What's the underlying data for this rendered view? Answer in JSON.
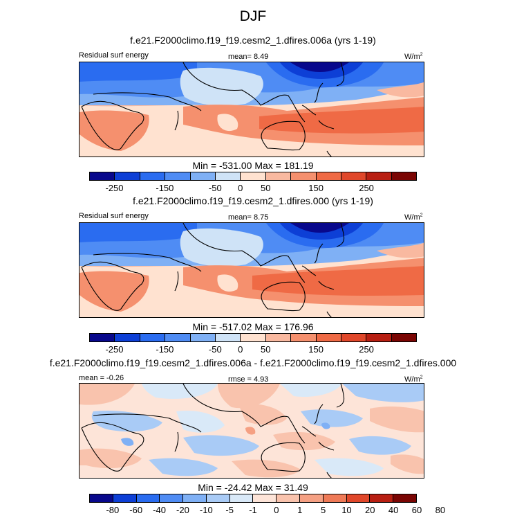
{
  "title": "DJF",
  "palettes": {
    "abs": [
      "#08088c",
      "#0d3fd6",
      "#2a6cf0",
      "#4f8cf4",
      "#7fb0f5",
      "#cfe3f7",
      "#ffe2d0",
      "#f9b9a0",
      "#f5906e",
      "#ef6a45",
      "#e0472a",
      "#b81f12",
      "#7a0503"
    ],
    "diff": [
      "#08088c",
      "#0d3fd6",
      "#2a6cf0",
      "#4f8cf4",
      "#7fb0f5",
      "#a9cbf6",
      "#d9e9f8",
      "#fde4d8",
      "#f9c3ad",
      "#f5a083",
      "#ef7a57",
      "#e0472a",
      "#b81f12",
      "#7a0503"
    ]
  },
  "panels": [
    {
      "title": "f.e21.F2000climo.f19_f19.cesm2_1.dfires.006a (yrs 1-19)",
      "left_label": "Residual surf energy",
      "center_label": "mean=  8.49",
      "units": "W/m",
      "units_exp": "2",
      "minmax": "Min = -531.00 Max = 181.19",
      "palette": "abs",
      "ticks": [
        "-250",
        "-150",
        "-50",
        "0",
        "50",
        "150",
        "250"
      ]
    },
    {
      "title": "f.e21.F2000climo.f19_f19.cesm2_1.dfires.000 (yrs 1-19)",
      "left_label": "Residual surf energy",
      "center_label": "mean=  8.75",
      "units": "W/m",
      "units_exp": "2",
      "minmax": "Min = -517.02 Max = 176.96",
      "palette": "abs",
      "ticks": [
        "-250",
        "-150",
        "-50",
        "0",
        "50",
        "150",
        "250"
      ]
    },
    {
      "title": "f.e21.F2000climo.f19_f19.cesm2_1.dfires.006a - f.e21.F2000climo.f19_f19.cesm2_1.dfires.000",
      "left_label": "mean = -0.26",
      "center_label": "rmse =  4.93",
      "units": "W/m",
      "units_exp": "2",
      "minmax": "Min = -24.42 Max = 31.49",
      "palette": "diff",
      "ticks": [
        "-80",
        "-60",
        "-40",
        "-20",
        "-10",
        "-5",
        "-1",
        "0",
        "1",
        "5",
        "10",
        "20",
        "40",
        "60",
        "80"
      ]
    }
  ],
  "chart_data": [
    {
      "type": "heatmap",
      "title": "f.e21.F2000climo.f19_f19.cesm2_1.dfires.006a (yrs 1-19)",
      "variable": "Residual surf energy",
      "mean": 8.49,
      "min": -531.0,
      "max": 181.19,
      "contour_levels": [
        -300,
        -250,
        -200,
        -150,
        -100,
        -50,
        0,
        25,
        50,
        100,
        150,
        200,
        250
      ],
      "colorbar_ticks": [
        -250,
        -150,
        -50,
        0,
        50,
        150,
        250
      ]
    },
    {
      "type": "heatmap",
      "title": "f.e21.F2000climo.f19_f19.cesm2_1.dfires.000 (yrs 1-19)",
      "variable": "Residual surf energy",
      "mean": 8.75,
      "min": -517.02,
      "max": 176.96,
      "contour_levels": [
        -300,
        -250,
        -200,
        -150,
        -100,
        -50,
        0,
        25,
        50,
        100,
        150,
        200,
        250
      ],
      "colorbar_ticks": [
        -250,
        -150,
        -50,
        0,
        50,
        150,
        250
      ]
    },
    {
      "type": "heatmap",
      "title": "f.e21.F2000climo.f19_f19.cesm2_1.dfires.006a - f.e21.F2000climo.f19_f19.cesm2_1.dfires.000",
      "mean": -0.26,
      "rmse": 4.93,
      "min": -24.42,
      "max": 31.49,
      "contour_levels": [
        -80,
        -60,
        -40,
        -20,
        -10,
        -5,
        -1,
        0,
        1,
        5,
        10,
        20,
        40,
        60,
        80
      ],
      "colorbar_ticks": [
        -80,
        -60,
        -40,
        -20,
        -10,
        -5,
        -1,
        0,
        1,
        5,
        10,
        20,
        40,
        60,
        80
      ]
    }
  ]
}
